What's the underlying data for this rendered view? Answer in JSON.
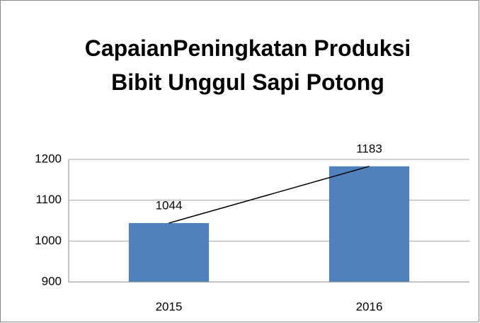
{
  "chart_data": {
    "type": "bar",
    "title": "CapaianPeningkatan Produksi Bibit Unggul Sapi Potong",
    "categories": [
      "2015",
      "2016"
    ],
    "values": [
      1044,
      1183
    ],
    "color": "#4f81bd",
    "trend_line_color": "#000000",
    "ylim": [
      900,
      1200
    ],
    "yticks": [
      900,
      1000,
      1100,
      1200
    ],
    "grid": true
  }
}
